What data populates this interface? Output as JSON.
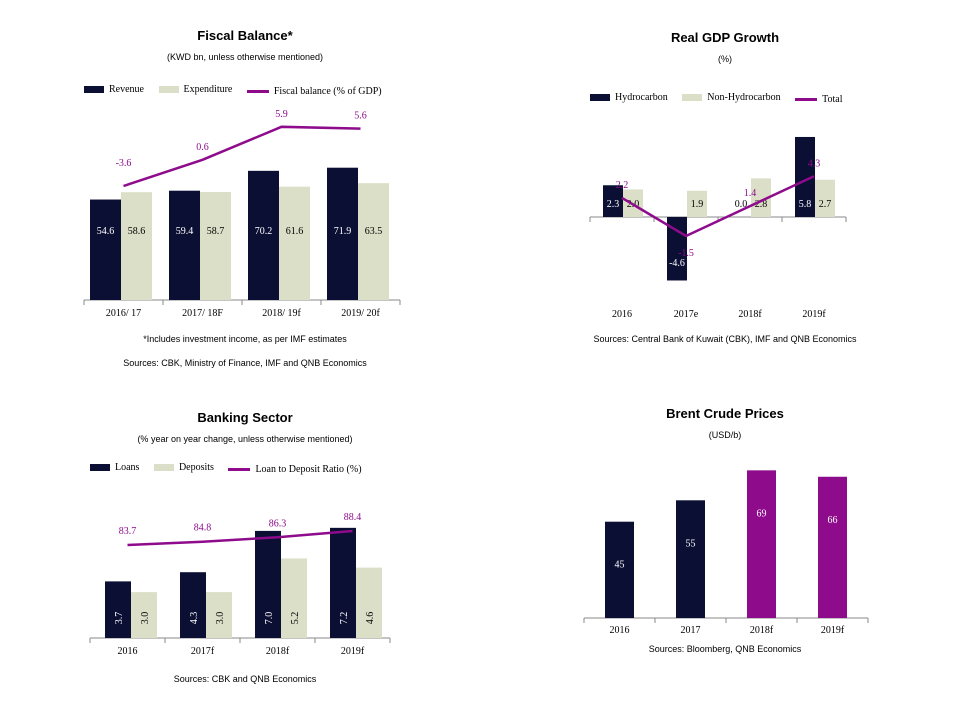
{
  "colors": {
    "navy": "#0b0f33",
    "beige": "#dcdfc8",
    "purple": "#8e0b8c",
    "axis": "#8a8a8a"
  },
  "chart_data": [
    {
      "id": "fiscal",
      "type": "bar",
      "title": "Fiscal Balance*",
      "subtitle": "(KWD bn, unless otherwise mentioned)",
      "categories": [
        "2016/ 17",
        "2017/ 18F",
        "2018/ 19f",
        "2019/ 20f"
      ],
      "series": [
        {
          "name": "Revenue",
          "values": [
            54.6,
            59.4,
            70.2,
            71.9
          ],
          "color": "#0b0f33"
        },
        {
          "name": "Expenditure",
          "values": [
            58.6,
            58.7,
            61.6,
            63.5
          ],
          "color": "#dcdfc8"
        }
      ],
      "line": {
        "name": "Fiscal balance (% of GDP)",
        "values": [
          -3.6,
          0.6,
          5.9,
          5.6
        ],
        "labels": [
          "-3.6",
          "0.6",
          "5.9",
          "5.6"
        ],
        "color": "#8e0b8c"
      },
      "note1": "*Includes investment income, as per IMF estimates",
      "note2": "Sources: CBK, Ministry of Finance, IMF and QNB Economics"
    },
    {
      "id": "gdp",
      "type": "bar",
      "title": "Real GDP Growth",
      "subtitle": "(%)",
      "categories": [
        "2016",
        "2017e",
        "2018f",
        "2019f"
      ],
      "series": [
        {
          "name": "Hydrocarbon",
          "values": [
            2.3,
            -4.6,
            0.0,
            5.8
          ],
          "color": "#0b0f33"
        },
        {
          "name": "Non-Hydrocarbon",
          "values": [
            2.0,
            1.9,
            2.8,
            2.7
          ],
          "color": "#dcdfc8"
        }
      ],
      "line": {
        "name": "Total",
        "values": [
          2.2,
          -1.5,
          1.4,
          4.3
        ],
        "labels": [
          "2.2",
          "-1.5",
          "1.4",
          "4.3"
        ],
        "color": "#8e0b8c"
      },
      "note1": "Sources: Central Bank of Kuwait (CBK), IMF and QNB Economics"
    },
    {
      "id": "bank",
      "type": "bar",
      "title": "Banking Sector",
      "subtitle": "(% year on year change, unless otherwise mentioned)",
      "categories": [
        "2016",
        "2017f",
        "2018f",
        "2019f"
      ],
      "series": [
        {
          "name": "Loans",
          "values": [
            3.7,
            4.3,
            7.0,
            7.2
          ],
          "color": "#0b0f33"
        },
        {
          "name": "Deposits",
          "values": [
            3.0,
            3.0,
            5.2,
            4.6
          ],
          "color": "#dcdfc8"
        }
      ],
      "line": {
        "name": "Loan to Deposit Ratio (%)",
        "values": [
          83.7,
          84.8,
          86.3,
          88.4
        ],
        "labels": [
          "83.7",
          "84.8",
          "86.3",
          "88.4"
        ],
        "color": "#8e0b8c"
      },
      "note1": "Sources: CBK and QNB Economics"
    },
    {
      "id": "brent",
      "type": "bar",
      "title": "Brent Crude Prices",
      "subtitle": "(USD/b)",
      "categories": [
        "2016",
        "2017",
        "2018f",
        "2019f"
      ],
      "values": [
        45,
        55,
        69,
        66
      ],
      "colors": [
        "#0b0f33",
        "#0b0f33",
        "#8e0b8c",
        "#8e0b8c"
      ],
      "note1": "Sources: Bloomberg, QNB Economics"
    }
  ]
}
